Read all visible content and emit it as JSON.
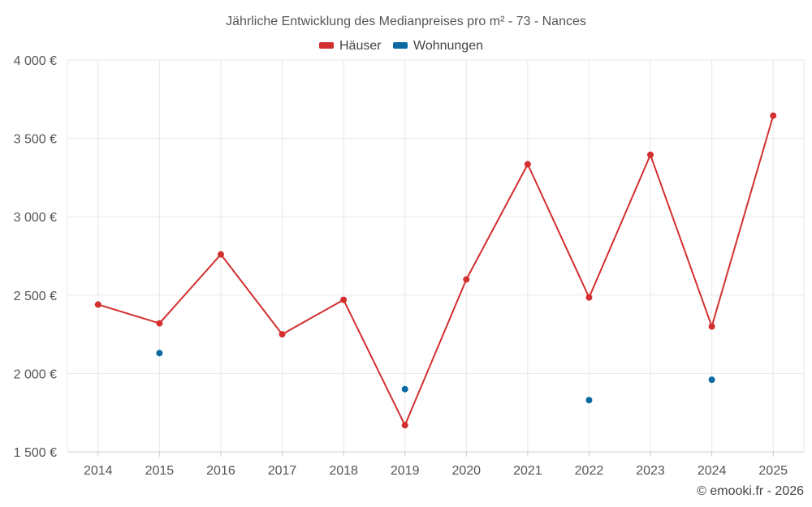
{
  "chart_data": {
    "type": "line",
    "title": "Jährliche Entwicklung des Medianpreises pro m² - 73 - Nances",
    "categories": [
      "2014",
      "2015",
      "2016",
      "2017",
      "2018",
      "2019",
      "2020",
      "2021",
      "2022",
      "2023",
      "2024",
      "2025"
    ],
    "series": [
      {
        "name": "Häuser",
        "color": "#d32f2f",
        "mode": "line+markers",
        "values": [
          2440,
          2320,
          2760,
          2250,
          2470,
          1670,
          2600,
          3335,
          2485,
          3395,
          2300,
          3645
        ]
      },
      {
        "name": "Wohnungen",
        "color": "#0a6aa1",
        "mode": "markers",
        "values": [
          null,
          2130,
          null,
          null,
          null,
          1900,
          null,
          null,
          1830,
          null,
          1960,
          null
        ]
      }
    ],
    "ylim": [
      1500,
      4000
    ],
    "yticks": [
      1500,
      2000,
      2500,
      3000,
      3500,
      4000
    ],
    "ytick_labels": [
      "1 500 €",
      "2 000 €",
      "2 500 €",
      "3 000 €",
      "3 500 €",
      "4 000 €"
    ],
    "grid": true,
    "legend_position": "top-center",
    "credit": "© emooki.fr - 2026"
  }
}
